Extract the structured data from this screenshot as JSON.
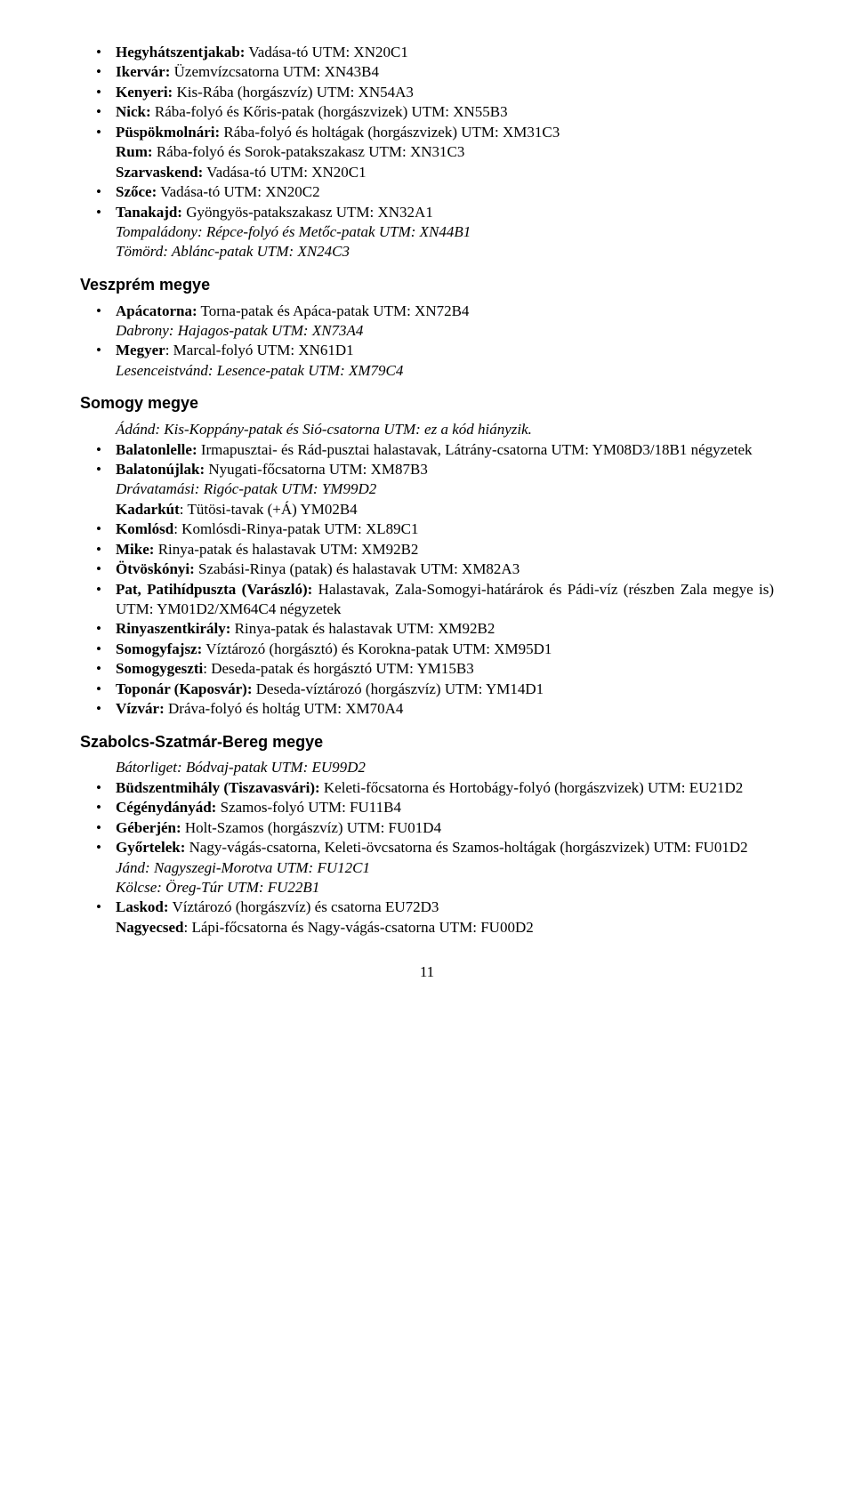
{
  "sections": [
    {
      "heading": null,
      "items": [
        {
          "b": true,
          "runs": [
            {
              "t": "Hegyhátszentjakab:",
              "s": "bold"
            },
            {
              "t": " Vadása-tó UTM: XN20C1"
            }
          ]
        },
        {
          "b": true,
          "runs": [
            {
              "t": "Ikervár:",
              "s": "bold"
            },
            {
              "t": " Üzemvízcsatorna UTM: XN43B4"
            }
          ]
        },
        {
          "b": true,
          "runs": [
            {
              "t": "Kenyeri:",
              "s": "bold"
            },
            {
              "t": " Kis-Rába (horgászvíz) UTM: XN54A3"
            }
          ]
        },
        {
          "b": true,
          "runs": [
            {
              "t": "Nick:",
              "s": "bold"
            },
            {
              "t": " Rába-folyó és Kőris-patak (horgászvizek) UTM: XN55B3"
            }
          ]
        },
        {
          "b": true,
          "runs": [
            {
              "t": "Püspökmolnári:",
              "s": "bold"
            },
            {
              "t": " Rába-folyó és holtágak (horgászvizek) UTM: XM31C3"
            }
          ]
        },
        {
          "b": false,
          "runs": [
            {
              "t": "Rum:",
              "s": "bold"
            },
            {
              "t": " Rába-folyó és Sorok-patakszakasz UTM: XN31C3"
            }
          ]
        },
        {
          "b": false,
          "runs": [
            {
              "t": "Szarvaskend:",
              "s": "bold"
            },
            {
              "t": " Vadása-tó UTM: XN20C1"
            }
          ]
        },
        {
          "b": true,
          "runs": [
            {
              "t": "Szőce:",
              "s": "bold"
            },
            {
              "t": " Vadása-tó UTM: XN20C2"
            }
          ]
        },
        {
          "b": true,
          "runs": [
            {
              "t": "Tanakajd:",
              "s": "bold"
            },
            {
              "t": " Gyöngyös-patakszakasz UTM: XN32A1"
            }
          ]
        },
        {
          "b": false,
          "runs": [
            {
              "t": "Tompaládony: Répce-folyó és Metőc-patak UTM: XN44B1",
              "s": "ital"
            }
          ]
        },
        {
          "b": false,
          "runs": [
            {
              "t": "Tömörd: Ablánc-patak UTM: XN24C3",
              "s": "ital"
            }
          ]
        }
      ]
    },
    {
      "heading": "Veszprém megye",
      "items": [
        {
          "b": true,
          "runs": [
            {
              "t": "Apácatorna:",
              "s": "bold"
            },
            {
              "t": " Torna-patak és Apáca-patak UTM: XN72B4"
            }
          ]
        },
        {
          "b": false,
          "runs": [
            {
              "t": "Dabrony: Hajagos-patak UTM: XN73A4",
              "s": "ital"
            }
          ]
        },
        {
          "b": true,
          "runs": [
            {
              "t": "Megyer",
              "s": "bold"
            },
            {
              "t": ": Marcal-folyó UTM: XN61D1"
            }
          ]
        },
        {
          "b": false,
          "runs": [
            {
              "t": "Lesenceistvánd: Lesence-patak UTM: XM79C4",
              "s": "ital"
            }
          ]
        }
      ]
    },
    {
      "heading": "Somogy megye",
      "items": []
    },
    {
      "heading": null,
      "items": [
        {
          "b": false,
          "runs": [
            {
              "t": "Ádánd: Kis-Koppány-patak és Sió-csatorna UTM: ez a kód hiányzik.",
              "s": "ital"
            }
          ]
        },
        {
          "b": true,
          "runs": [
            {
              "t": "Balatonlelle:",
              "s": "bold"
            },
            {
              "t": " Irmapusztai- és Rád-pusztai halastavak, Látrány-csatorna UTM: YM08D3/18B1 négyzetek"
            }
          ]
        },
        {
          "b": true,
          "runs": [
            {
              "t": "Balatonújlak:",
              "s": "bold"
            },
            {
              "t": " Nyugati-főcsatorna UTM: XM87B3"
            }
          ]
        },
        {
          "b": false,
          "runs": [
            {
              "t": "Drávatamási: Rigóc-patak UTM: YM99D2",
              "s": "ital"
            }
          ]
        },
        {
          "b": false,
          "runs": [
            {
              "t": "Kadarkút",
              "s": "bold"
            },
            {
              "t": ": Tütösi-tavak (+Á) YM02B4"
            }
          ]
        },
        {
          "b": true,
          "runs": [
            {
              "t": "Komlósd",
              "s": "bold"
            },
            {
              "t": ": Komlósdi-Rinya-patak UTM: XL89C1"
            }
          ]
        },
        {
          "b": true,
          "runs": [
            {
              "t": "Mike:",
              "s": "bold"
            },
            {
              "t": " Rinya-patak és halastavak UTM: XM92B2"
            }
          ]
        },
        {
          "b": true,
          "runs": [
            {
              "t": "Ötvöskónyi:",
              "s": "bold"
            },
            {
              "t": " Szabási-Rinya (patak) és halastavak UTM: XM82A3"
            }
          ]
        },
        {
          "b": true,
          "runs": [
            {
              "t": "Pat, Patihídpuszta (Varászló):",
              "s": "bold"
            },
            {
              "t": " Halastavak, Zala-Somogyi-határárok és Pádi-víz (részben Zala megye is) UTM: YM01D2/XM64C4 négyzetek"
            }
          ]
        },
        {
          "b": true,
          "runs": [
            {
              "t": "Rinyaszentkirály:",
              "s": "bold"
            },
            {
              "t": " Rinya-patak és halastavak UTM: XM92B2"
            }
          ]
        },
        {
          "b": true,
          "runs": [
            {
              "t": "Somogyfajsz:",
              "s": "bold"
            },
            {
              "t": " Víztározó (horgásztó) és Korokna-patak UTM: XM95D1"
            }
          ]
        },
        {
          "b": true,
          "runs": [
            {
              "t": "Somogygeszti",
              "s": "bold"
            },
            {
              "t": ": Deseda-patak és horgásztó UTM: YM15B3"
            }
          ]
        },
        {
          "b": true,
          "runs": [
            {
              "t": "Toponár (Kaposvár):",
              "s": "bold"
            },
            {
              "t": " Deseda-víztározó (horgászvíz) UTM: YM14D1"
            }
          ]
        },
        {
          "b": true,
          "runs": [
            {
              "t": "Vízvár:",
              "s": "bold"
            },
            {
              "t": " Dráva-folyó és holtág UTM: XM70A4"
            }
          ]
        }
      ]
    },
    {
      "heading": "Szabolcs-Szatmár-Bereg megye",
      "items": []
    },
    {
      "heading": null,
      "items": [
        {
          "b": false,
          "runs": [
            {
              "t": "Bátorliget: Bódvaj-patak UTM: EU99D2",
              "s": "ital"
            }
          ]
        },
        {
          "b": true,
          "runs": [
            {
              "t": "Büdszentmihály (Tiszavasvári):",
              "s": "bold"
            },
            {
              "t": " Keleti-főcsatorna és Hortobágy-folyó (horgászvizek) UTM: EU21D2"
            }
          ]
        },
        {
          "b": true,
          "runs": [
            {
              "t": "Cégénydányád:",
              "s": "bold"
            },
            {
              "t": " Szamos-folyó UTM: FU11B4"
            }
          ]
        },
        {
          "b": true,
          "runs": [
            {
              "t": "Géberjén:",
              "s": "bold"
            },
            {
              "t": " Holt-Szamos (horgászvíz) UTM: FU01D4"
            }
          ]
        },
        {
          "b": true,
          "runs": [
            {
              "t": "Győrtelek:",
              "s": "bold"
            },
            {
              "t": " Nagy-vágás-csatorna, Keleti-övcsatorna és Szamos-holtágak (horgászvizek) UTM: FU01D2"
            }
          ]
        },
        {
          "b": false,
          "runs": [
            {
              "t": "Jánd: Nagyszegi-Morotva UTM: FU12C1",
              "s": "ital"
            }
          ]
        },
        {
          "b": false,
          "runs": [
            {
              "t": "Kölcse: Öreg-Túr UTM: FU22B1",
              "s": "ital"
            }
          ]
        },
        {
          "b": true,
          "runs": [
            {
              "t": "Laskod:",
              "s": "bold"
            },
            {
              "t": " Víztározó (horgászvíz) és csatorna EU72D3"
            }
          ]
        },
        {
          "b": false,
          "runs": [
            {
              "t": "Nagyecsed",
              "s": "bold"
            },
            {
              "t": ": Lápi-főcsatorna és Nagy-vágás-csatorna UTM: FU00D2"
            }
          ]
        }
      ]
    }
  ],
  "page_number": "11"
}
